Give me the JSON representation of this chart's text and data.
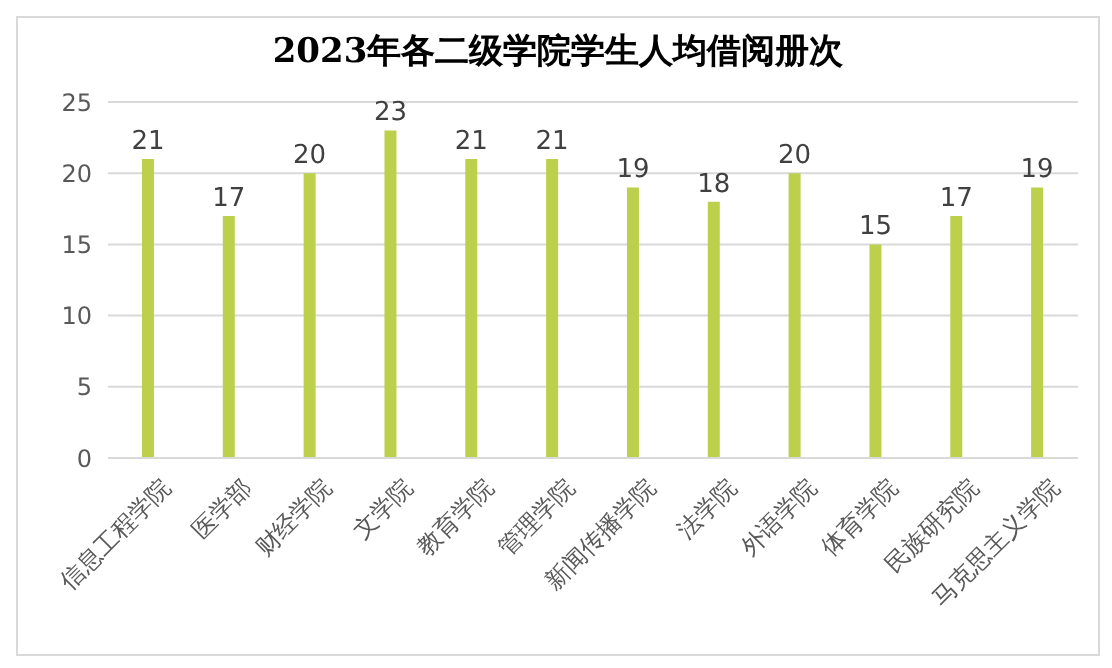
{
  "chart_data": {
    "type": "bar",
    "title": "2023年各二级学院学生人均借阅册次",
    "categories": [
      "信息工程学院",
      "医学部",
      "财经学院",
      "文学院",
      "教育学院",
      "管理学院",
      "新闻传播学院",
      "法学院",
      "外语学院",
      "体育学院",
      "民族研究院",
      "马克思主义学院"
    ],
    "values": [
      21,
      17,
      20,
      23,
      21,
      21,
      19,
      18,
      20,
      15,
      17,
      19
    ],
    "color": "#bdd04b",
    "ylim": [
      0,
      25
    ],
    "yticks": [
      0,
      5,
      10,
      15,
      20,
      25
    ],
    "grid": "y",
    "data_labels": true
  }
}
